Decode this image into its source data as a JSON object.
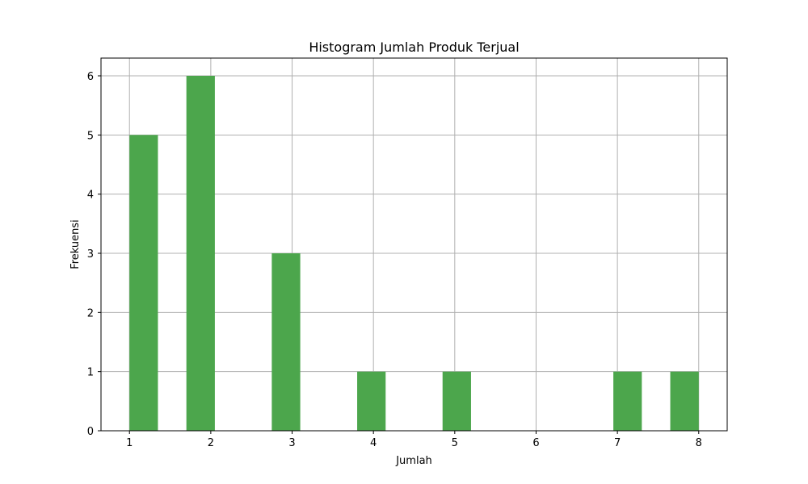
{
  "chart_data": {
    "type": "bar",
    "title": "Histogram Jumlah Produk Terjual",
    "xlabel": "Jumlah",
    "ylabel": "Frekuensi",
    "xlim": [
      0.65,
      8.35
    ],
    "ylim": [
      0,
      6.3
    ],
    "xticks": [
      1,
      2,
      3,
      4,
      5,
      6,
      7,
      8
    ],
    "yticks": [
      0,
      1,
      2,
      3,
      4,
      5,
      6
    ],
    "grid": true,
    "bar_color": "#4ca64c",
    "bins": [
      {
        "start": 1.0,
        "end": 1.35,
        "count": 5
      },
      {
        "start": 1.7,
        "end": 2.05,
        "count": 6
      },
      {
        "start": 2.75,
        "end": 3.1,
        "count": 3
      },
      {
        "start": 3.8,
        "end": 4.15,
        "count": 1
      },
      {
        "start": 4.85,
        "end": 5.2,
        "count": 1
      },
      {
        "start": 6.95,
        "end": 7.3,
        "count": 1
      },
      {
        "start": 7.65,
        "end": 8.0,
        "count": 1
      }
    ]
  }
}
